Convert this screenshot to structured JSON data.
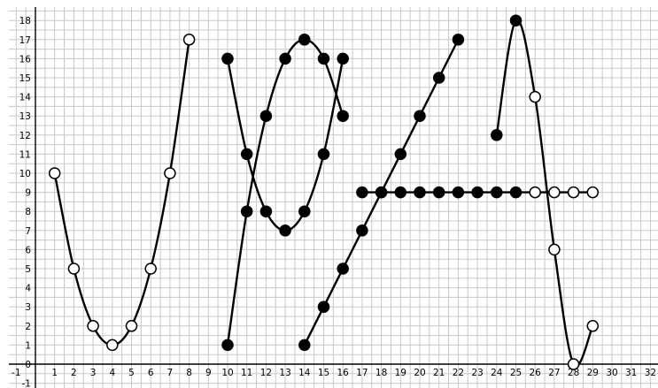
{
  "chart_data": {
    "type": "scatter",
    "title": "",
    "xlabel": "",
    "ylabel": "",
    "xlim": [
      -1,
      32
    ],
    "ylim": [
      -1,
      18
    ],
    "x_ticks": [
      -1,
      0,
      1,
      2,
      3,
      4,
      5,
      6,
      7,
      8,
      9,
      10,
      11,
      12,
      13,
      14,
      15,
      16,
      17,
      18,
      19,
      20,
      21,
      22,
      23,
      24,
      25,
      26,
      27,
      28,
      29,
      30,
      31,
      32
    ],
    "y_ticks": [
      -1,
      0,
      1,
      2,
      3,
      4,
      5,
      6,
      7,
      8,
      9,
      10,
      11,
      12,
      13,
      14,
      15,
      16,
      17,
      18
    ],
    "grid": true,
    "series": [
      {
        "style": "smooth",
        "points": [
          {
            "x": 1,
            "y": 10,
            "open": true
          },
          {
            "x": 2,
            "y": 5,
            "open": true
          },
          {
            "x": 3,
            "y": 2,
            "open": true
          },
          {
            "x": 4,
            "y": 1,
            "open": true
          },
          {
            "x": 5,
            "y": 2,
            "open": true
          },
          {
            "x": 6,
            "y": 5,
            "open": true
          },
          {
            "x": 7,
            "y": 10,
            "open": true
          },
          {
            "x": 8,
            "y": 17,
            "open": true
          }
        ]
      },
      {
        "style": "smooth",
        "points": [
          {
            "x": 10,
            "y": 16,
            "open": false
          },
          {
            "x": 11,
            "y": 11,
            "open": false
          },
          {
            "x": 12,
            "y": 8,
            "open": false
          },
          {
            "x": 13,
            "y": 7,
            "open": false
          },
          {
            "x": 14,
            "y": 8,
            "open": false
          },
          {
            "x": 15,
            "y": 11,
            "open": false
          },
          {
            "x": 16,
            "y": 16,
            "open": false
          }
        ]
      },
      {
        "style": "smooth",
        "points": [
          {
            "x": 10,
            "y": 1,
            "open": false
          },
          {
            "x": 11,
            "y": 8,
            "open": false
          },
          {
            "x": 12,
            "y": 13,
            "open": false
          },
          {
            "x": 13,
            "y": 16,
            "open": false
          },
          {
            "x": 14,
            "y": 17,
            "open": false
          },
          {
            "x": 15,
            "y": 16,
            "open": false
          },
          {
            "x": 16,
            "y": 13,
            "open": false
          }
        ]
      },
      {
        "style": "straight",
        "points": [
          {
            "x": 14,
            "y": 1,
            "open": false
          },
          {
            "x": 15,
            "y": 3,
            "open": false
          },
          {
            "x": 16,
            "y": 5,
            "open": false
          },
          {
            "x": 17,
            "y": 7,
            "open": false
          },
          {
            "x": 18,
            "y": 9,
            "open": false
          },
          {
            "x": 19,
            "y": 11,
            "open": false
          },
          {
            "x": 20,
            "y": 13,
            "open": false
          },
          {
            "x": 21,
            "y": 15,
            "open": false
          },
          {
            "x": 22,
            "y": 17,
            "open": false
          }
        ]
      },
      {
        "style": "straight",
        "points": [
          {
            "x": 17,
            "y": 9,
            "open": false
          },
          {
            "x": 18,
            "y": 9,
            "open": false
          },
          {
            "x": 19,
            "y": 9,
            "open": false
          },
          {
            "x": 20,
            "y": 9,
            "open": false
          },
          {
            "x": 21,
            "y": 9,
            "open": false
          },
          {
            "x": 22,
            "y": 9,
            "open": false
          },
          {
            "x": 23,
            "y": 9,
            "open": false
          },
          {
            "x": 24,
            "y": 9,
            "open": false
          },
          {
            "x": 25,
            "y": 9,
            "open": false
          },
          {
            "x": 26,
            "y": 9,
            "open": true
          },
          {
            "x": 27,
            "y": 9,
            "open": true
          },
          {
            "x": 28,
            "y": 9,
            "open": true
          },
          {
            "x": 29,
            "y": 9,
            "open": true
          }
        ]
      },
      {
        "style": "smooth",
        "points": [
          {
            "x": 24,
            "y": 12,
            "open": false
          },
          {
            "x": 25,
            "y": 18,
            "open": false
          },
          {
            "x": 26,
            "y": 14,
            "open": true
          },
          {
            "x": 27,
            "y": 6,
            "open": true
          },
          {
            "x": 28,
            "y": 0,
            "open": true
          },
          {
            "x": 29,
            "y": 2,
            "open": true
          }
        ]
      }
    ]
  }
}
